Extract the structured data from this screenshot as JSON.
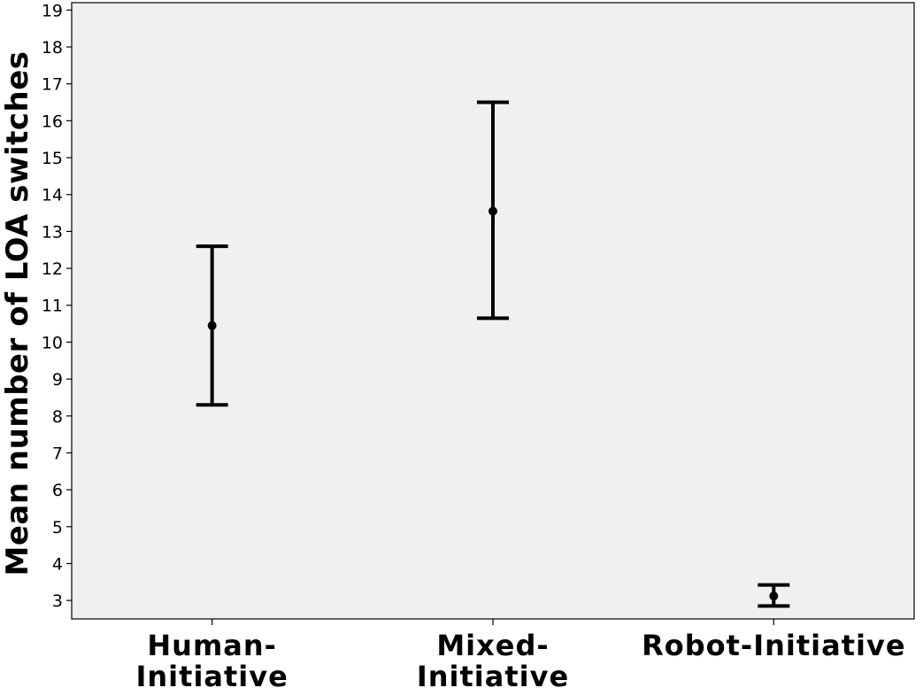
{
  "chart_data": {
    "type": "errorbar",
    "title": "",
    "xlabel": "",
    "ylabel": "Mean number of LOA switches",
    "ylim": [
      2.5,
      19.2
    ],
    "yticks": [
      3,
      4,
      5,
      6,
      7,
      8,
      9,
      10,
      11,
      12,
      13,
      14,
      15,
      16,
      17,
      18,
      19
    ],
    "categories": [
      [
        "Human-",
        "Initiative"
      ],
      [
        "Mixed-",
        "Initiative"
      ],
      [
        "Robot-Initiative"
      ]
    ],
    "mean": [
      10.45,
      13.55,
      3.12
    ],
    "lower": [
      8.3,
      10.65,
      2.85
    ],
    "upper": [
      12.6,
      16.5,
      3.42
    ],
    "grid": false,
    "colors": {
      "plot_background": "#f0f0f0",
      "marks": "#000000"
    }
  }
}
